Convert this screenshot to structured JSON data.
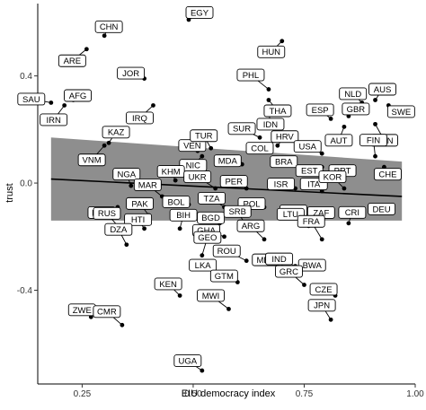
{
  "chart_data": {
    "type": "scatter",
    "xlabel": "EIU democracy index",
    "ylabel": "trust",
    "xlim": [
      0.15,
      1.0
    ],
    "ylim": [
      -0.75,
      0.67
    ],
    "x_ticks": [
      0.25,
      0.5,
      0.75,
      1.0
    ],
    "x_tick_labels": [
      "0.25",
      "0.50",
      "0.75",
      "1.00"
    ],
    "y_ticks": [
      -0.4,
      0.0,
      0.4
    ],
    "y_tick_labels": [
      "-0.4",
      "0.0",
      "0.4"
    ],
    "grid": false,
    "regression": {
      "line": [
        [
          0.18,
          0.015
        ],
        [
          0.97,
          -0.05
        ]
      ],
      "ci_upper": [
        [
          0.18,
          0.17
        ],
        [
          0.97,
          0.08
        ]
      ],
      "ci_lower": [
        [
          0.18,
          -0.14
        ],
        [
          0.97,
          -0.14
        ]
      ]
    },
    "points": [
      {
        "label": "EGY",
        "x": 0.49,
        "y": 0.61
      },
      {
        "label": "CHN",
        "x": 0.3,
        "y": 0.55
      },
      {
        "label": "ARE",
        "x": 0.26,
        "y": 0.5
      },
      {
        "label": "HUN",
        "x": 0.7,
        "y": 0.53
      },
      {
        "label": "SAU",
        "x": 0.18,
        "y": 0.3
      },
      {
        "label": "AFG",
        "x": 0.23,
        "y": 0.31
      },
      {
        "label": "IRN",
        "x": 0.21,
        "y": 0.29
      },
      {
        "label": "JOR",
        "x": 0.39,
        "y": 0.39
      },
      {
        "label": "IRQ",
        "x": 0.41,
        "y": 0.29
      },
      {
        "label": "PHL",
        "x": 0.67,
        "y": 0.35
      },
      {
        "label": "THA",
        "x": 0.67,
        "y": 0.31
      },
      {
        "label": "IDN",
        "x": 0.67,
        "y": 0.27
      },
      {
        "label": "NLD",
        "x": 0.88,
        "y": 0.3
      },
      {
        "label": "AUS",
        "x": 0.91,
        "y": 0.31
      },
      {
        "label": "SWE",
        "x": 0.94,
        "y": 0.29
      },
      {
        "label": "ESP",
        "x": 0.81,
        "y": 0.24
      },
      {
        "label": "GBR",
        "x": 0.85,
        "y": 0.25
      },
      {
        "label": "AUT",
        "x": 0.84,
        "y": 0.21
      },
      {
        "label": "CAN",
        "x": 0.91,
        "y": 0.22
      },
      {
        "label": "KAZ",
        "x": 0.31,
        "y": 0.15
      },
      {
        "label": "VNM",
        "x": 0.3,
        "y": 0.14
      },
      {
        "label": "VEN",
        "x": 0.51,
        "y": 0.12
      },
      {
        "label": "TUR",
        "x": 0.54,
        "y": 0.13
      },
      {
        "label": "NIC",
        "x": 0.52,
        "y": 0.1
      },
      {
        "label": "SUR",
        "x": 0.65,
        "y": 0.17
      },
      {
        "label": "COL",
        "x": 0.66,
        "y": 0.12
      },
      {
        "label": "HRV",
        "x": 0.69,
        "y": 0.14
      },
      {
        "label": "USA",
        "x": 0.79,
        "y": 0.11
      },
      {
        "label": "FIN",
        "x": 0.91,
        "y": 0.1
      },
      {
        "label": "MDA",
        "x": 0.61,
        "y": 0.07
      },
      {
        "label": "BRA",
        "x": 0.7,
        "y": 0.07
      },
      {
        "label": "EST",
        "x": 0.79,
        "y": 0.06
      },
      {
        "label": "PRT",
        "x": 0.82,
        "y": 0.06
      },
      {
        "label": "CHE",
        "x": 0.93,
        "y": 0.06
      },
      {
        "label": "KHM",
        "x": 0.46,
        "y": 0.01
      },
      {
        "label": "UKR",
        "x": 0.55,
        "y": -0.02
      },
      {
        "label": "PER",
        "x": 0.62,
        "y": -0.02
      },
      {
        "label": "ISR",
        "x": 0.73,
        "y": -0.02
      },
      {
        "label": "ITA",
        "x": 0.79,
        "y": -0.03
      },
      {
        "label": "KOR",
        "x": 0.84,
        "y": -0.02
      },
      {
        "label": "NGA",
        "x": 0.36,
        "y": -0.01
      },
      {
        "label": "MAR",
        "x": 0.43,
        "y": -0.05
      },
      {
        "label": "RWA",
        "x": 0.33,
        "y": -0.09
      },
      {
        "label": "BOL",
        "x": 0.49,
        "y": -0.08
      },
      {
        "label": "TZA",
        "x": 0.57,
        "y": -0.09
      },
      {
        "label": "POL",
        "x": 0.66,
        "y": -0.09
      },
      {
        "label": "CHL",
        "x": 0.75,
        "y": -0.11
      },
      {
        "label": "ZAF",
        "x": 0.78,
        "y": -0.1
      },
      {
        "label": "DEU",
        "x": 0.9,
        "y": -0.11
      },
      {
        "label": "PAK",
        "x": 0.4,
        "y": -0.12
      },
      {
        "label": "BGD",
        "x": 0.56,
        "y": -0.15
      },
      {
        "label": "CRI",
        "x": 0.85,
        "y": -0.15
      },
      {
        "label": "RUS",
        "x": 0.33,
        "y": -0.16
      },
      {
        "label": "HTI",
        "x": 0.39,
        "y": -0.17
      },
      {
        "label": "BIH",
        "x": 0.47,
        "y": -0.17
      },
      {
        "label": "SRB",
        "x": 0.62,
        "y": -0.16
      },
      {
        "label": "LTU",
        "x": 0.76,
        "y": -0.16
      },
      {
        "label": "GHA",
        "x": 0.57,
        "y": -0.2
      },
      {
        "label": "ARG",
        "x": 0.66,
        "y": -0.21
      },
      {
        "label": "FRA",
        "x": 0.79,
        "y": -0.21
      },
      {
        "label": "DZA",
        "x": 0.35,
        "y": -0.23
      },
      {
        "label": "GEO",
        "x": 0.52,
        "y": -0.27
      },
      {
        "label": "ROU",
        "x": 0.62,
        "y": -0.29
      },
      {
        "label": "MEX",
        "x": 0.7,
        "y": -0.3
      },
      {
        "label": "IND",
        "x": 0.73,
        "y": -0.31
      },
      {
        "label": "BWA",
        "x": 0.79,
        "y": -0.32
      },
      {
        "label": "LKA",
        "x": 0.55,
        "y": -0.34
      },
      {
        "label": "GTM",
        "x": 0.6,
        "y": -0.37
      },
      {
        "label": "GRC",
        "x": 0.75,
        "y": -0.38
      },
      {
        "label": "CZE",
        "x": 0.82,
        "y": -0.42
      },
      {
        "label": "KEN",
        "x": 0.47,
        "y": -0.42
      },
      {
        "label": "ZWE",
        "x": 0.27,
        "y": -0.5
      },
      {
        "label": "MWI",
        "x": 0.58,
        "y": -0.47
      },
      {
        "label": "CMR",
        "x": 0.34,
        "y": -0.53
      },
      {
        "label": "JPN",
        "x": 0.81,
        "y": -0.51
      },
      {
        "label": "UGA",
        "x": 0.52,
        "y": -0.7
      }
    ]
  }
}
